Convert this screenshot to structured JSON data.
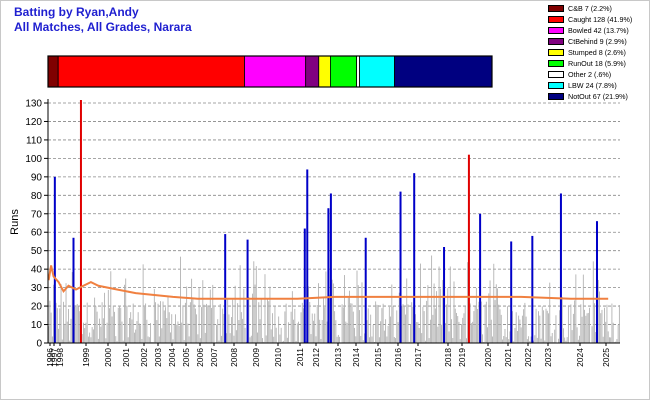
{
  "chart_data": {
    "type": "bar",
    "title": "Batting by Ryan,Andy",
    "subtitle": "All Matches, All Grades, Narara",
    "ylabel": "Runs",
    "ylim": [
      0,
      130
    ],
    "yticks": [
      0,
      10,
      20,
      30,
      40,
      50,
      60,
      70,
      80,
      90,
      100,
      110,
      120,
      130
    ],
    "grid": true,
    "legend_position": "top-right",
    "dismissals": [
      {
        "label": "C&B 7 (2.2%)",
        "count": 7,
        "percent": 2.2,
        "color": "#800000"
      },
      {
        "label": "Caught 128 (41.9%)",
        "count": 128,
        "percent": 41.9,
        "color": "#ff0000"
      },
      {
        "label": "Bowled 42 (13.7%)",
        "count": 42,
        "percent": 13.7,
        "color": "#ff00ff"
      },
      {
        "label": "CtBehind 9 (2.9%)",
        "count": 9,
        "percent": 2.9,
        "color": "#800080"
      },
      {
        "label": "Stumped 8 (2.6%)",
        "count": 8,
        "percent": 2.6,
        "color": "#ffff00"
      },
      {
        "label": "RunOut 18 (5.9%)",
        "count": 18,
        "percent": 5.9,
        "color": "#00ff00"
      },
      {
        "label": "Other 2 (.6%)",
        "count": 2,
        "percent": 0.6,
        "color": "#ffffff"
      },
      {
        "label": "LBW 24 (7.8%)",
        "count": 24,
        "percent": 7.8,
        "color": "#00ffff"
      },
      {
        "label": "NotOut 67 (21.9%)",
        "count": 67,
        "percent": 21.9,
        "color": "#000080"
      }
    ],
    "x_tick_labels": [
      "1996",
      "1997",
      "1998",
      "1999",
      "2000",
      "2001",
      "2002",
      "2003",
      "2004",
      "2005",
      "2006",
      "2007",
      "2008",
      "2009",
      "2010",
      "2011",
      "2012",
      "2013",
      "2014",
      "2015",
      "2016",
      "2017",
      "2018",
      "2019",
      "2020",
      "2021",
      "2022",
      "2023",
      "2024",
      "2025"
    ],
    "highlight_innings": [
      {
        "index": 5,
        "runs": 90,
        "series": "NotOut"
      },
      {
        "index": 20,
        "runs": 57,
        "series": "NotOut"
      },
      {
        "index": 26,
        "runs": 132,
        "series": "Caught"
      },
      {
        "index": 142,
        "runs": 59,
        "series": "NotOut"
      },
      {
        "index": 160,
        "runs": 56,
        "series": "NotOut"
      },
      {
        "index": 206,
        "runs": 62,
        "series": "NotOut"
      },
      {
        "index": 208,
        "runs": 94,
        "series": "NotOut"
      },
      {
        "index": 225,
        "runs": 73,
        "series": "NotOut"
      },
      {
        "index": 227,
        "runs": 81,
        "series": "NotOut"
      },
      {
        "index": 255,
        "runs": 57,
        "series": "NotOut"
      },
      {
        "index": 283,
        "runs": 82,
        "series": "NotOut"
      },
      {
        "index": 294,
        "runs": 92,
        "series": "NotOut"
      },
      {
        "index": 318,
        "runs": 52,
        "series": "NotOut"
      },
      {
        "index": 338,
        "runs": 102,
        "series": "Caught"
      },
      {
        "index": 347,
        "runs": 70,
        "series": "NotOut"
      },
      {
        "index": 372,
        "runs": 55,
        "series": "NotOut"
      },
      {
        "index": 389,
        "runs": 58,
        "series": "NotOut"
      },
      {
        "index": 412,
        "runs": 81,
        "series": "NotOut"
      },
      {
        "index": 441,
        "runs": 66,
        "series": "NotOut"
      }
    ],
    "career_average": [
      {
        "index": 0,
        "value": 34
      },
      {
        "index": 2,
        "value": 42
      },
      {
        "index": 4,
        "value": 36
      },
      {
        "index": 8,
        "value": 33
      },
      {
        "index": 12,
        "value": 28
      },
      {
        "index": 16,
        "value": 31
      },
      {
        "index": 22,
        "value": 29
      },
      {
        "index": 28,
        "value": 31
      },
      {
        "index": 34,
        "value": 33
      },
      {
        "index": 40,
        "value": 31
      },
      {
        "index": 55,
        "value": 29
      },
      {
        "index": 70,
        "value": 27
      },
      {
        "index": 85,
        "value": 26
      },
      {
        "index": 100,
        "value": 25
      },
      {
        "index": 120,
        "value": 24
      },
      {
        "index": 140,
        "value": 24
      },
      {
        "index": 165,
        "value": 24
      },
      {
        "index": 200,
        "value": 24
      },
      {
        "index": 230,
        "value": 25
      },
      {
        "index": 260,
        "value": 25
      },
      {
        "index": 300,
        "value": 25
      },
      {
        "index": 340,
        "value": 25
      },
      {
        "index": 380,
        "value": 25
      },
      {
        "index": 420,
        "value": 24
      },
      {
        "index": 450,
        "value": 24
      }
    ]
  }
}
